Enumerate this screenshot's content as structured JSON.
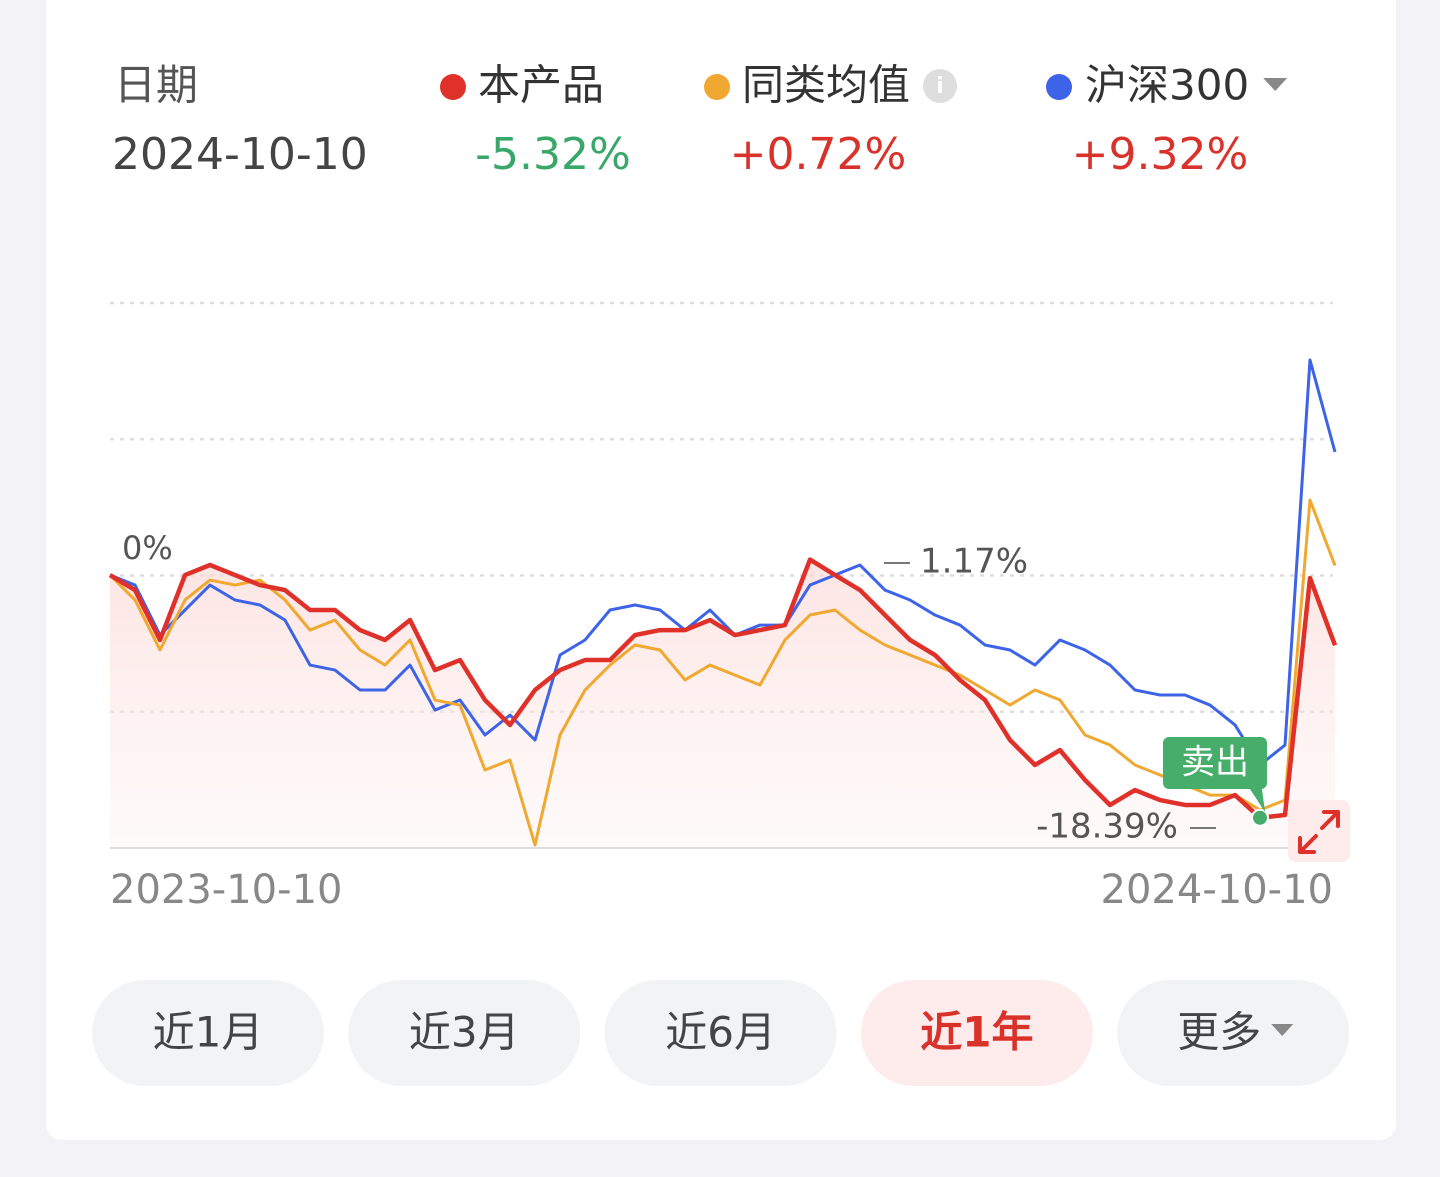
{
  "chart_data": {
    "type": "line",
    "header": {
      "date_title": "日期",
      "date": "2024-10-10"
    },
    "categories": [
      "2023-10-10",
      null,
      null,
      null,
      null,
      null,
      null,
      null,
      null,
      null,
      null,
      null,
      null,
      null,
      null,
      null,
      null,
      null,
      null,
      null,
      null,
      null,
      null,
      null,
      null,
      null,
      null,
      null,
      null,
      null,
      null,
      null,
      null,
      null,
      null,
      null,
      null,
      null,
      null,
      null,
      null,
      null,
      null,
      null,
      null,
      null,
      null,
      null,
      null,
      "2024-10-10"
    ],
    "series": [
      {
        "name": "本产品",
        "color": "#e0302a",
        "last_label": "-5.32%",
        "last_color": "#3aa76a",
        "fill": true,
        "values": [
          0,
          -1.14,
          -4.92,
          0,
          0.76,
          0,
          -0.76,
          -1.14,
          -2.65,
          -2.65,
          -4.17,
          -4.92,
          -3.41,
          -7.2,
          -6.44,
          -9.47,
          -11.36,
          -8.71,
          -7.2,
          -6.44,
          -6.44,
          -4.55,
          -4.17,
          -4.17,
          -3.41,
          -4.55,
          -4.17,
          -3.79,
          1.17,
          0,
          -1.14,
          -3.03,
          -4.92,
          -6.06,
          -7.95,
          -9.47,
          -12.5,
          -14.39,
          -13.26,
          -15.53,
          -17.42,
          -16.29,
          -17.05,
          -17.42,
          -17.42,
          -16.67,
          -18.39,
          -18.18,
          -0.23,
          -5.32
        ]
      },
      {
        "name": "同类均值",
        "color": "#f0a830",
        "last_label": "+0.72%",
        "last_color": "#d9322b",
        "info": "i",
        "values": [
          0,
          -1.89,
          -5.68,
          -1.89,
          -0.38,
          -0.76,
          -0.38,
          -1.89,
          -4.17,
          -3.41,
          -5.68,
          -6.82,
          -4.92,
          -9.47,
          -9.85,
          -14.77,
          -14.02,
          -20.45,
          -12.12,
          -8.71,
          -6.82,
          -5.3,
          -5.68,
          -7.95,
          -6.82,
          -7.58,
          -8.33,
          -4.92,
          -3.03,
          -2.65,
          -4.17,
          -5.3,
          -6.06,
          -6.82,
          -7.58,
          -8.71,
          -9.85,
          -8.71,
          -9.47,
          -12.12,
          -12.88,
          -14.39,
          -15.15,
          -15.91,
          -16.67,
          -16.67,
          -17.8,
          -17.05,
          5.68,
          0.72
        ]
      },
      {
        "name": "沪深300",
        "color": "#3d63e8",
        "last_label": "+9.32%",
        "last_color": "#d9322b",
        "dropdown": true,
        "values": [
          0,
          -0.76,
          -4.55,
          -2.65,
          -0.76,
          -1.89,
          -2.27,
          -3.41,
          -6.82,
          -7.2,
          -8.71,
          -8.71,
          -6.82,
          -10.23,
          -9.47,
          -12.12,
          -10.61,
          -12.5,
          -6.06,
          -4.92,
          -2.65,
          -2.27,
          -2.65,
          -4.17,
          -2.65,
          -4.55,
          -3.79,
          -3.79,
          -0.76,
          0,
          0.76,
          -1.14,
          -1.89,
          -3.03,
          -3.79,
          -5.3,
          -5.68,
          -6.82,
          -4.92,
          -5.68,
          -6.82,
          -8.71,
          -9.09,
          -9.09,
          -9.85,
          -11.36,
          -14.39,
          -12.88,
          16.29,
          9.32
        ]
      }
    ],
    "ylim": [
      -20.68,
      20.61
    ],
    "annotations": {
      "start": "0%",
      "max": "1.17%",
      "min": "-18.39%",
      "sell": "卖出"
    },
    "buttons": [
      {
        "label": "近1月"
      },
      {
        "label": "近3月"
      },
      {
        "label": "近6月"
      },
      {
        "label": "近1年",
        "selected": true
      },
      {
        "label": "更多",
        "dropdown": true
      }
    ]
  }
}
